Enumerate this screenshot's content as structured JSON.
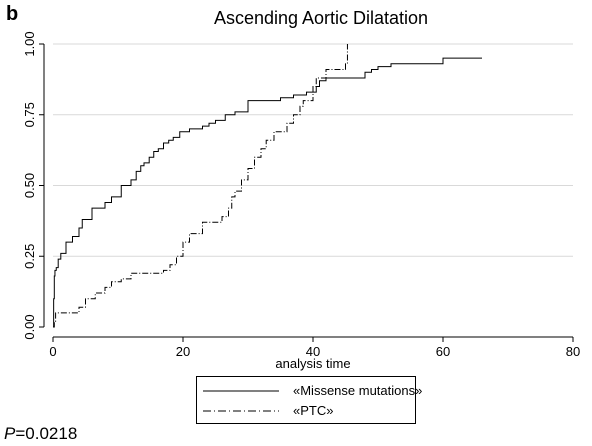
{
  "panel_letter": "b",
  "p_value": {
    "prefix": "P",
    "text": "=0.0218"
  },
  "chart_data": {
    "type": "line",
    "title": "Ascending Aortic Dilatation",
    "xlabel": "analysis time",
    "ylabel": "",
    "xlim": [
      0,
      80
    ],
    "ylim": [
      0,
      1
    ],
    "xticks": [
      0,
      20,
      40,
      60,
      80
    ],
    "xtick_labels": [
      "0",
      "20",
      "40",
      "60",
      "80"
    ],
    "yticks": [
      0,
      0.25,
      0.5,
      0.75,
      1
    ],
    "ytick_labels": [
      "0.00",
      "0.25",
      "0.50",
      "0.75",
      "1.00"
    ],
    "grid": "horizontal",
    "legend_position": "bottom",
    "series": [
      {
        "name": "«Missense mutations»",
        "line_style": "solid",
        "color": "#000000",
        "x": [
          0,
          0.1,
          0.2,
          0.3,
          0.5,
          0.8,
          1.2,
          2.0,
          3.0,
          4.0,
          4.5,
          6.0,
          8.0,
          9.0,
          10.5,
          12.0,
          12.8,
          13.5,
          14.0,
          14.8,
          15.5,
          16.2,
          17.0,
          17.8,
          18.5,
          19.5,
          21.0,
          23.0,
          24.0,
          25.0,
          26.5,
          28.0,
          30.0,
          35.0,
          37.0,
          39.0,
          40.5,
          41.0,
          42.0,
          48.0,
          49.0,
          50.0,
          52.0,
          60.0,
          66.0
        ],
        "y": [
          0,
          0.1,
          0.18,
          0.2,
          0.21,
          0.24,
          0.26,
          0.3,
          0.32,
          0.35,
          0.38,
          0.42,
          0.44,
          0.46,
          0.5,
          0.52,
          0.55,
          0.57,
          0.58,
          0.6,
          0.62,
          0.63,
          0.65,
          0.66,
          0.67,
          0.69,
          0.7,
          0.71,
          0.72,
          0.73,
          0.75,
          0.76,
          0.8,
          0.81,
          0.82,
          0.83,
          0.85,
          0.87,
          0.88,
          0.9,
          0.91,
          0.92,
          0.93,
          0.95,
          0.95
        ]
      },
      {
        "name": "«PTC»",
        "line_style": "dash-dot",
        "color": "#000000",
        "x": [
          0,
          0.2,
          0.4,
          4.0,
          5.0,
          6.5,
          8.0,
          9.0,
          10.5,
          12.0,
          17.0,
          18.0,
          19.0,
          20.0,
          21.0,
          23.0,
          26.0,
          27.0,
          27.5,
          28.0,
          29.0,
          30.0,
          31.0,
          32.0,
          32.8,
          34.0,
          36.0,
          37.0,
          38.0,
          38.5,
          40.0,
          40.5,
          42.0,
          45.0,
          45.3
        ],
        "y": [
          0,
          0.02,
          0.05,
          0.07,
          0.1,
          0.12,
          0.14,
          0.16,
          0.17,
          0.19,
          0.2,
          0.22,
          0.25,
          0.3,
          0.33,
          0.37,
          0.39,
          0.42,
          0.46,
          0.48,
          0.52,
          0.56,
          0.6,
          0.63,
          0.66,
          0.69,
          0.72,
          0.75,
          0.78,
          0.8,
          0.85,
          0.88,
          0.91,
          0.93,
          1.0
        ]
      }
    ]
  }
}
